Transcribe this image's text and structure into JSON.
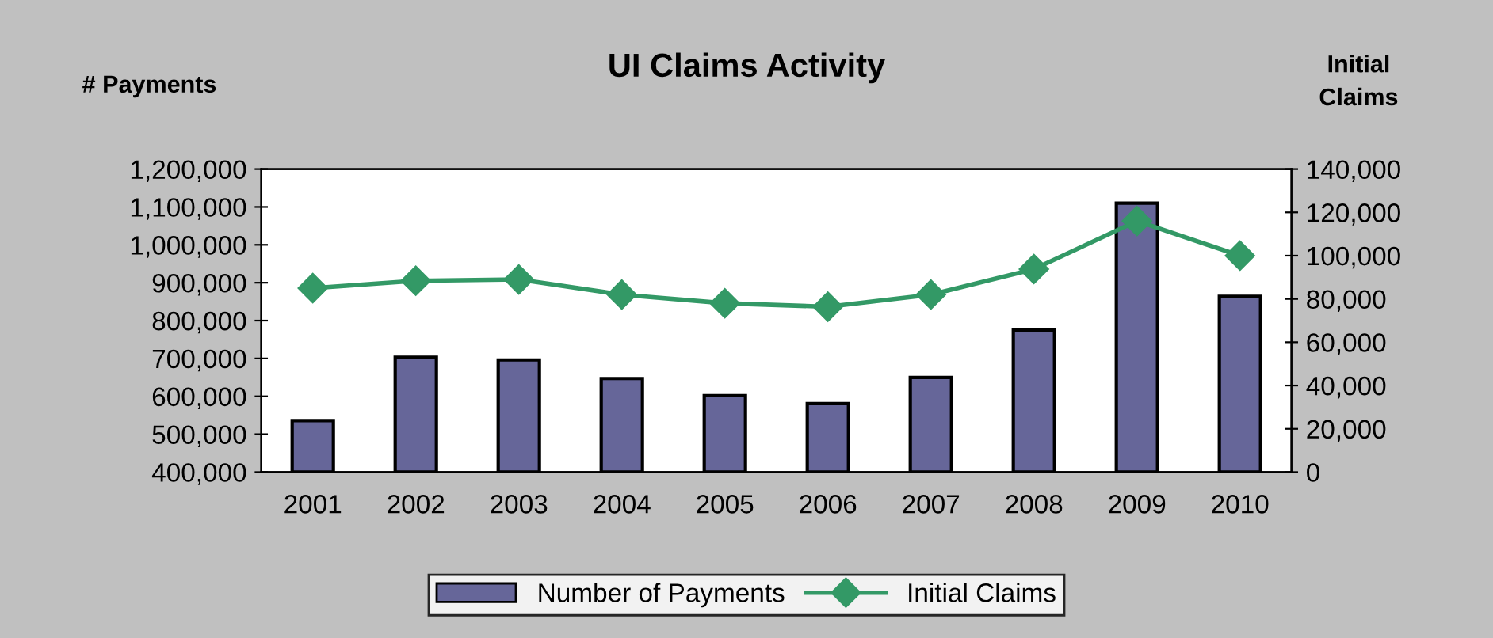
{
  "chart_data": {
    "type": "bar",
    "title": "UI Claims Activity",
    "ylabel": "# Payments",
    "y2label": "Initial\nClaims",
    "categories": [
      "2001",
      "2002",
      "2003",
      "2004",
      "2005",
      "2006",
      "2007",
      "2008",
      "2009",
      "2010"
    ],
    "series": [
      {
        "name": "Number of Payments",
        "color": "#666699",
        "values": [
          536000,
          703000,
          696000,
          647000,
          602000,
          581000,
          650000,
          775000,
          1110000,
          864000
        ]
      },
      {
        "name": "Initial Claims",
        "type": "line",
        "axis": "y2",
        "color": "#339966",
        "marker": "diamond",
        "values": [
          85000,
          88400,
          89000,
          82000,
          78000,
          76400,
          82000,
          93800,
          116000,
          100000
        ]
      }
    ],
    "ylim": [
      400000,
      1200000
    ],
    "yticks": [
      {
        "value": 400000,
        "label": "400,000"
      },
      {
        "value": 500000,
        "label": "500,000"
      },
      {
        "value": 600000,
        "label": "600,000"
      },
      {
        "value": 700000,
        "label": "700,000"
      },
      {
        "value": 800000,
        "label": "800,000"
      },
      {
        "value": 900000,
        "label": "900,000"
      },
      {
        "value": 1000000,
        "label": "1,000,000"
      },
      {
        "value": 1100000,
        "label": "1,100,000"
      },
      {
        "value": 1200000,
        "label": "1,200,000"
      }
    ],
    "y2lim": [
      0,
      140000
    ],
    "y2ticks": [
      0,
      {
        "value": 20000,
        "label": "20,000"
      },
      {
        "value": 40000,
        "label": "40,000"
      },
      {
        "value": 60000,
        "label": "60,000"
      },
      {
        "value": 80000,
        "label": "80,000"
      },
      {
        "value": 100000,
        "label": "100,000"
      },
      {
        "value": 120000,
        "label": "120,000"
      },
      {
        "value": 140000,
        "label": "140,000"
      }
    ],
    "grid": false,
    "legend": "bottom"
  }
}
